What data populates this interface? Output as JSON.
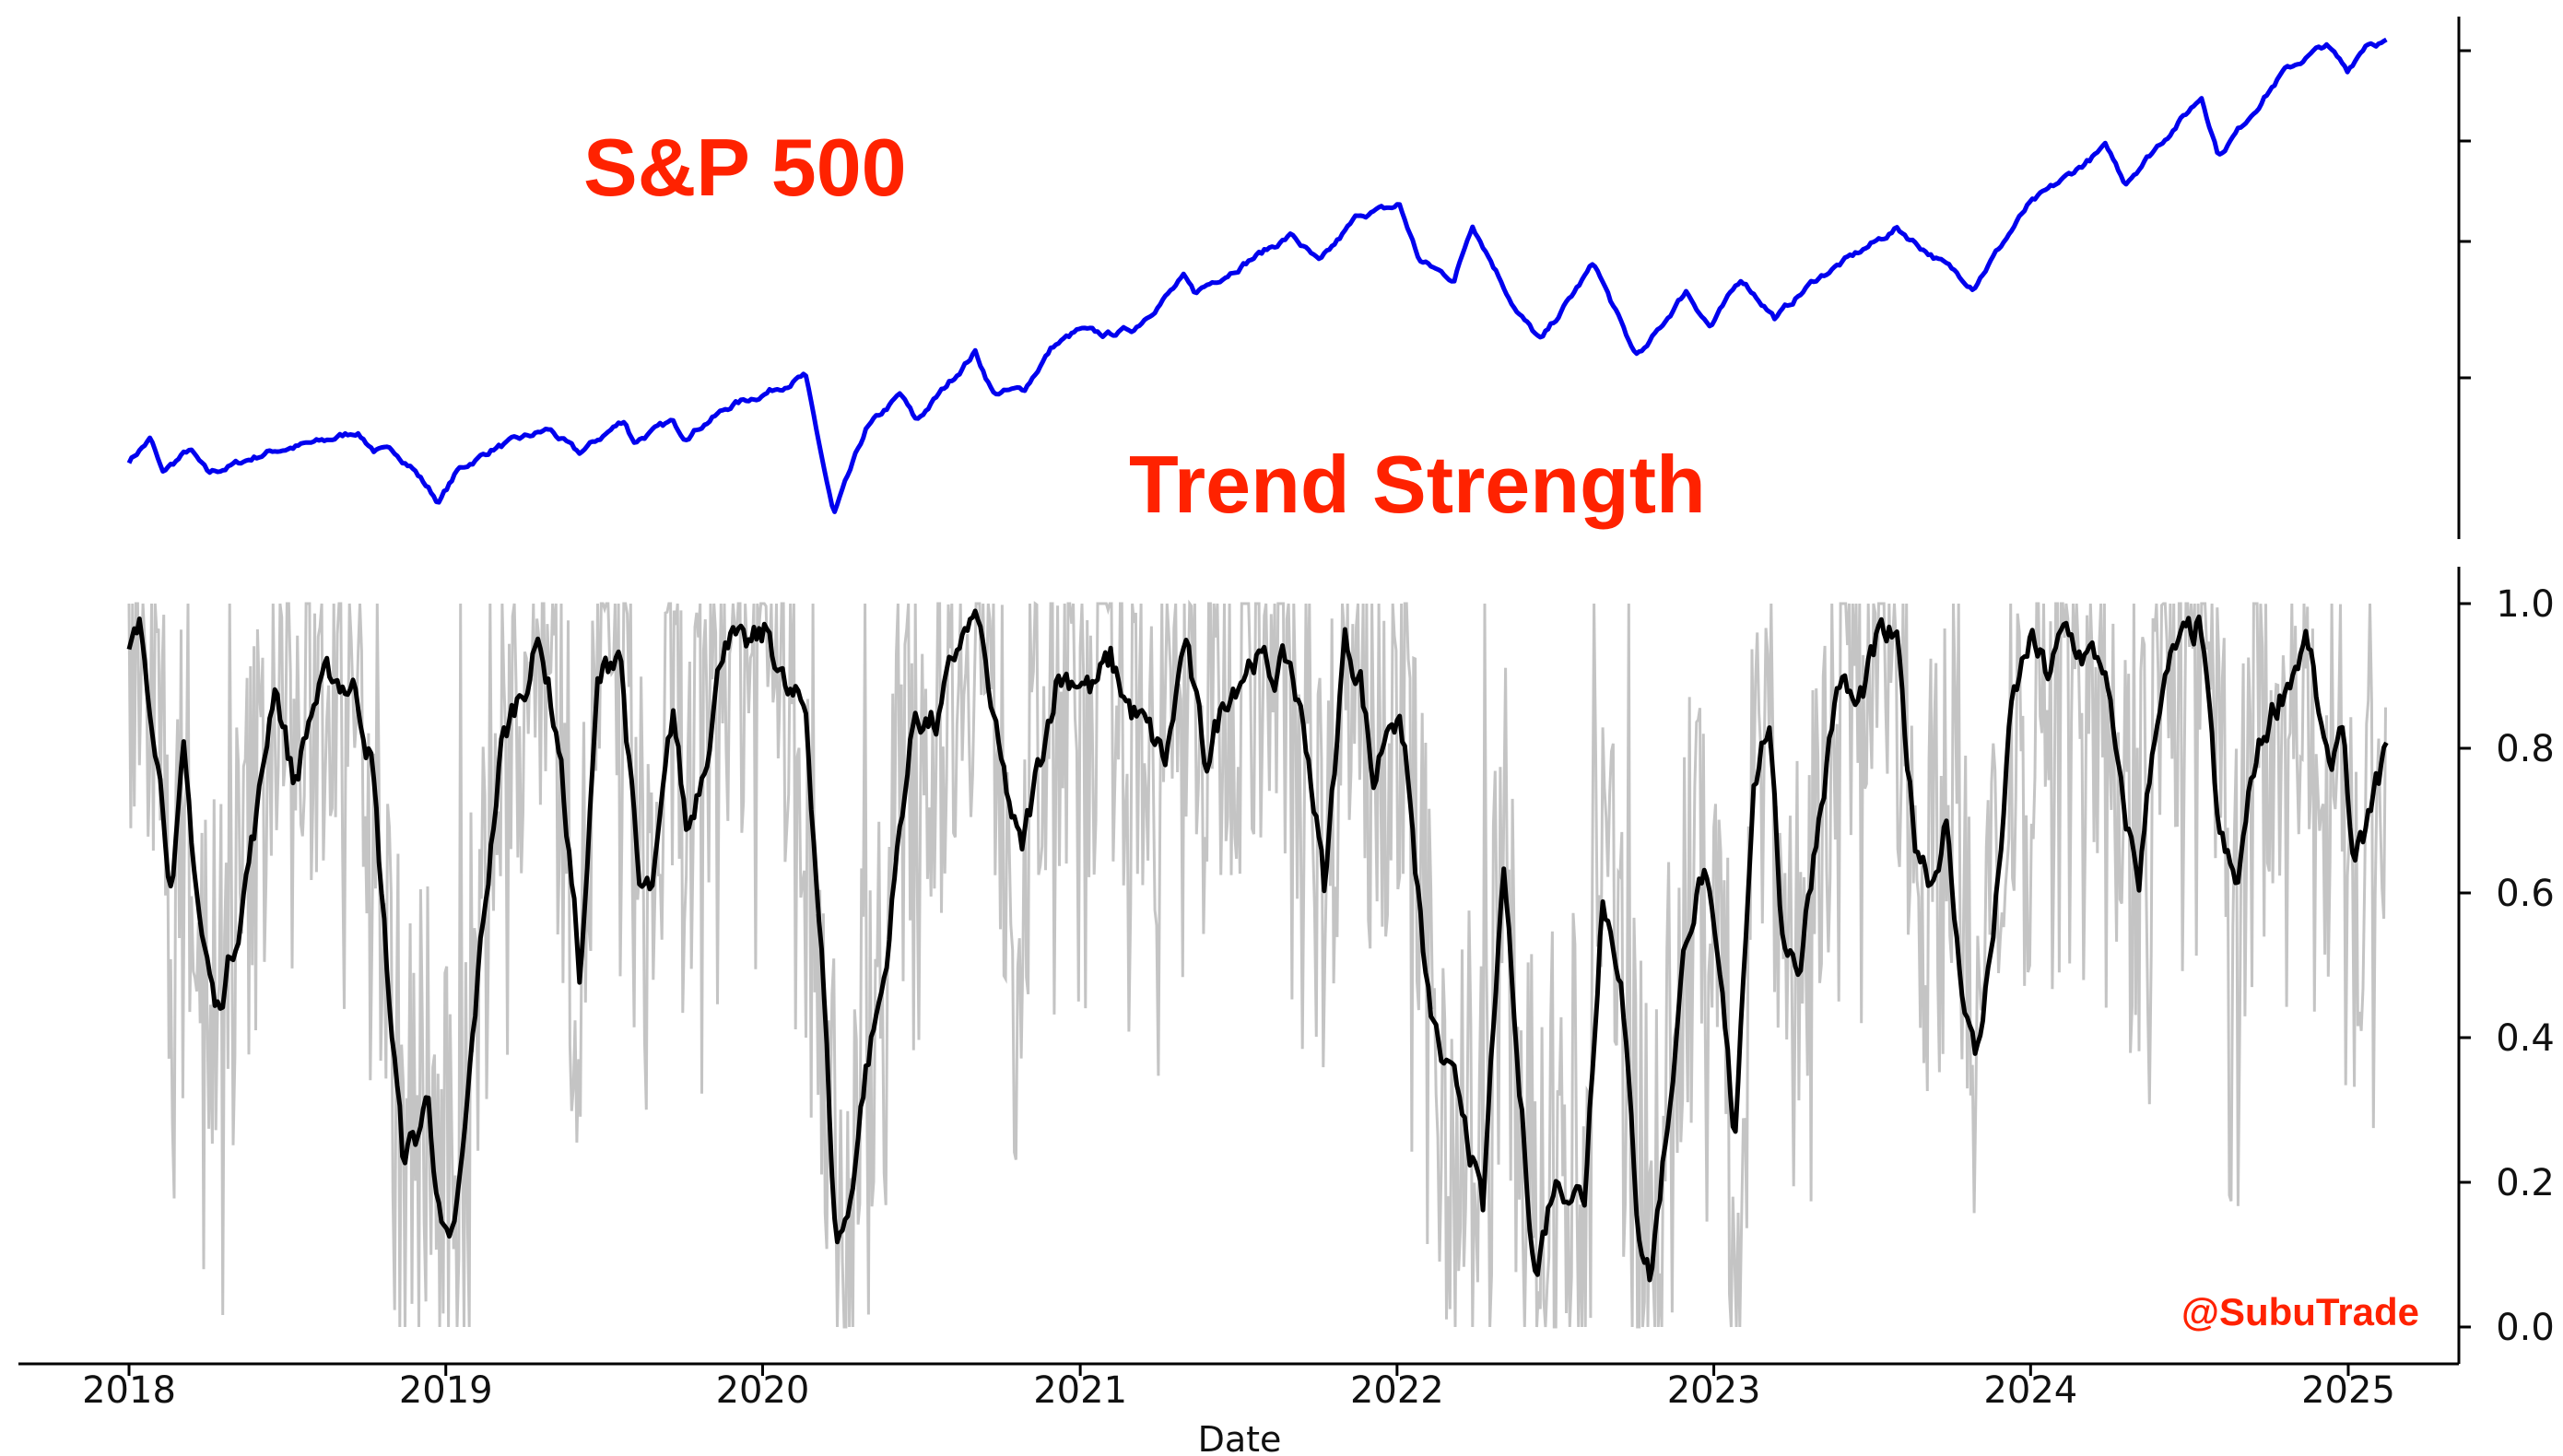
{
  "chart_data": [
    {
      "type": "line",
      "panel": "top",
      "label": "S&P 500",
      "label_color": "#ff2200",
      "series": [
        {
          "color": "#0000ee",
          "points": [
            [
              "2018-01-01",
              2690
            ],
            [
              "2018-01-26",
              2870
            ],
            [
              "2018-02-08",
              2590
            ],
            [
              "2018-03-12",
              2780
            ],
            [
              "2018-04-02",
              2580
            ],
            [
              "2018-06-15",
              2770
            ],
            [
              "2018-08-15",
              2850
            ],
            [
              "2018-09-20",
              2930
            ],
            [
              "2018-10-10",
              2780
            ],
            [
              "2018-11-05",
              2750
            ],
            [
              "2018-11-22",
              2650
            ],
            [
              "2018-12-24",
              2350
            ],
            [
              "2019-01-15",
              2610
            ],
            [
              "2019-02-25",
              2790
            ],
            [
              "2019-04-30",
              2945
            ],
            [
              "2019-06-03",
              2745
            ],
            [
              "2019-07-26",
              3025
            ],
            [
              "2019-08-05",
              2845
            ],
            [
              "2019-09-18",
              3005
            ],
            [
              "2019-10-03",
              2890
            ],
            [
              "2019-11-28",
              3150
            ],
            [
              "2019-12-31",
              3230
            ],
            [
              "2020-02-19",
              3386
            ],
            [
              "2020-03-23",
              2237
            ],
            [
              "2020-04-29",
              2940
            ],
            [
              "2020-06-08",
              3230
            ],
            [
              "2020-06-26",
              3010
            ],
            [
              "2020-09-02",
              3580
            ],
            [
              "2020-09-23",
              3240
            ],
            [
              "2020-10-28",
              3270
            ],
            [
              "2020-11-30",
              3620
            ],
            [
              "2020-12-31",
              3756
            ],
            [
              "2021-01-29",
              3715
            ],
            [
              "2021-03-04",
              3770
            ],
            [
              "2021-04-30",
              4180
            ],
            [
              "2021-05-12",
              4060
            ],
            [
              "2021-07-30",
              4395
            ],
            [
              "2021-09-02",
              4535
            ],
            [
              "2021-10-04",
              4300
            ],
            [
              "2021-11-18",
              4700
            ],
            [
              "2021-12-31",
              4766
            ],
            [
              "2022-01-03",
              4796
            ],
            [
              "2022-01-27",
              4326
            ],
            [
              "2022-03-08",
              4170
            ],
            [
              "2022-03-29",
              4630
            ],
            [
              "2022-05-20",
              3900
            ],
            [
              "2022-06-16",
              3666
            ],
            [
              "2022-08-16",
              4305
            ],
            [
              "2022-09-30",
              3585
            ],
            [
              "2022-10-12",
              3577
            ],
            [
              "2022-11-30",
              4080
            ],
            [
              "2022-12-28",
              3783
            ],
            [
              "2023-02-02",
              4180
            ],
            [
              "2023-03-13",
              3855
            ],
            [
              "2023-04-28",
              4170
            ],
            [
              "2023-06-30",
              4450
            ],
            [
              "2023-07-31",
              4588
            ],
            [
              "2023-10-27",
              4117
            ],
            [
              "2023-12-29",
              4770
            ],
            [
              "2024-03-28",
              5254
            ],
            [
              "2024-04-19",
              4967
            ],
            [
              "2024-07-16",
              5667
            ],
            [
              "2024-08-05",
              5186
            ],
            [
              "2024-10-18",
              5865
            ],
            [
              "2024-12-06",
              6090
            ],
            [
              "2024-12-31",
              5882
            ],
            [
              "2025-01-23",
              6118
            ],
            [
              "2025-02-14",
              6114
            ]
          ]
        }
      ]
    },
    {
      "type": "line",
      "panel": "bottom",
      "label": "Trend Strength",
      "label_color": "#ff2200",
      "xlabel": "Date",
      "x_ticks": [
        "2018",
        "2019",
        "2020",
        "2021",
        "2022",
        "2023",
        "2024",
        "2025"
      ],
      "x_range": [
        "2017-10-23",
        "2025-05-01"
      ],
      "ylim": [
        -0.05,
        1.05
      ],
      "y_ticks": [
        "0.0",
        "0.2",
        "0.4",
        "0.6",
        "0.8",
        "1.0"
      ],
      "grid": false,
      "series": [
        {
          "color": "#000000",
          "points": [
            [
              "2018-01-01",
              0.93
            ],
            [
              "2018-01-14",
              0.96
            ],
            [
              "2018-02-01",
              0.82
            ],
            [
              "2018-02-20",
              0.6
            ],
            [
              "2018-03-05",
              0.78
            ],
            [
              "2018-03-25",
              0.55
            ],
            [
              "2018-04-12",
              0.43
            ],
            [
              "2018-05-05",
              0.55
            ],
            [
              "2018-05-30",
              0.72
            ],
            [
              "2018-06-18",
              0.9
            ],
            [
              "2018-07-10",
              0.75
            ],
            [
              "2018-08-01",
              0.86
            ],
            [
              "2018-08-22",
              0.9
            ],
            [
              "2018-09-20",
              0.88
            ],
            [
              "2018-10-08",
              0.78
            ],
            [
              "2018-10-28",
              0.45
            ],
            [
              "2018-11-12",
              0.24
            ],
            [
              "2018-11-28",
              0.26
            ],
            [
              "2018-12-12",
              0.32
            ],
            [
              "2018-12-26",
              0.14
            ],
            [
              "2019-01-06",
              0.09
            ],
            [
              "2019-01-20",
              0.22
            ],
            [
              "2019-02-12",
              0.55
            ],
            [
              "2019-03-06",
              0.8
            ],
            [
              "2019-03-22",
              0.86
            ],
            [
              "2019-04-20",
              0.95
            ],
            [
              "2019-05-12",
              0.8
            ],
            [
              "2019-06-05",
              0.48
            ],
            [
              "2019-06-25",
              0.88
            ],
            [
              "2019-07-20",
              0.95
            ],
            [
              "2019-08-12",
              0.6
            ],
            [
              "2019-08-28",
              0.6
            ],
            [
              "2019-09-20",
              0.85
            ],
            [
              "2019-10-06",
              0.68
            ],
            [
              "2019-10-28",
              0.8
            ],
            [
              "2019-11-20",
              0.97
            ],
            [
              "2019-12-10",
              0.93
            ],
            [
              "2020-01-08",
              0.96
            ],
            [
              "2020-01-30",
              0.87
            ],
            [
              "2020-02-20",
              0.85
            ],
            [
              "2020-03-10",
              0.5
            ],
            [
              "2020-03-25",
              0.12
            ],
            [
              "2020-04-08",
              0.15
            ],
            [
              "2020-04-28",
              0.35
            ],
            [
              "2020-05-20",
              0.48
            ],
            [
              "2020-06-10",
              0.72
            ],
            [
              "2020-06-25",
              0.85
            ],
            [
              "2020-07-20",
              0.83
            ],
            [
              "2020-08-15",
              0.95
            ],
            [
              "2020-09-05",
              0.98
            ],
            [
              "2020-09-30",
              0.78
            ],
            [
              "2020-10-25",
              0.65
            ],
            [
              "2020-11-10",
              0.75
            ],
            [
              "2020-12-05",
              0.9
            ],
            [
              "2020-12-31",
              0.9
            ],
            [
              "2021-01-15",
              0.88
            ],
            [
              "2021-02-05",
              0.92
            ],
            [
              "2021-02-25",
              0.86
            ],
            [
              "2021-03-15",
              0.83
            ],
            [
              "2021-04-10",
              0.78
            ],
            [
              "2021-05-01",
              0.95
            ],
            [
              "2021-05-25",
              0.78
            ],
            [
              "2021-06-20",
              0.88
            ],
            [
              "2021-07-20",
              0.93
            ],
            [
              "2021-08-10",
              0.9
            ],
            [
              "2021-08-30",
              0.92
            ],
            [
              "2021-09-20",
              0.8
            ],
            [
              "2021-10-10",
              0.6
            ],
            [
              "2021-11-01",
              0.95
            ],
            [
              "2021-11-20",
              0.9
            ],
            [
              "2021-12-05",
              0.75
            ],
            [
              "2021-12-25",
              0.86
            ],
            [
              "2022-01-10",
              0.8
            ],
            [
              "2022-02-05",
              0.45
            ],
            [
              "2022-02-25",
              0.35
            ],
            [
              "2022-03-20",
              0.3
            ],
            [
              "2022-04-10",
              0.15
            ],
            [
              "2022-04-25",
              0.48
            ],
            [
              "2022-05-05",
              0.62
            ],
            [
              "2022-05-20",
              0.35
            ],
            [
              "2022-06-10",
              0.07
            ],
            [
              "2022-06-30",
              0.2
            ],
            [
              "2022-07-15",
              0.2
            ],
            [
              "2022-08-05",
              0.18
            ],
            [
              "2022-08-25",
              0.6
            ],
            [
              "2022-09-15",
              0.5
            ],
            [
              "2022-10-05",
              0.15
            ],
            [
              "2022-10-20",
              0.07
            ],
            [
              "2022-11-10",
              0.3
            ],
            [
              "2022-12-01",
              0.55
            ],
            [
              "2022-12-20",
              0.63
            ],
            [
              "2023-01-10",
              0.45
            ],
            [
              "2023-01-25",
              0.26
            ],
            [
              "2023-02-15",
              0.75
            ],
            [
              "2023-03-05",
              0.84
            ],
            [
              "2023-03-20",
              0.55
            ],
            [
              "2023-04-10",
              0.5
            ],
            [
              "2023-05-01",
              0.7
            ],
            [
              "2023-05-25",
              0.9
            ],
            [
              "2023-06-15",
              0.85
            ],
            [
              "2023-07-10",
              0.95
            ],
            [
              "2023-07-30",
              0.95
            ],
            [
              "2023-08-20",
              0.68
            ],
            [
              "2023-09-10",
              0.62
            ],
            [
              "2023-09-25",
              0.7
            ],
            [
              "2023-10-10",
              0.5
            ],
            [
              "2023-10-30",
              0.37
            ],
            [
              "2023-11-20",
              0.55
            ],
            [
              "2023-12-10",
              0.85
            ],
            [
              "2023-12-31",
              0.95
            ],
            [
              "2024-01-20",
              0.9
            ],
            [
              "2024-02-10",
              0.96
            ],
            [
              "2024-03-01",
              0.93
            ],
            [
              "2024-03-25",
              0.92
            ],
            [
              "2024-04-15",
              0.72
            ],
            [
              "2024-05-05",
              0.62
            ],
            [
              "2024-05-25",
              0.85
            ],
            [
              "2024-06-15",
              0.93
            ],
            [
              "2024-07-15",
              0.97
            ],
            [
              "2024-08-05",
              0.68
            ],
            [
              "2024-08-25",
              0.6
            ],
            [
              "2024-09-15",
              0.78
            ],
            [
              "2024-10-05",
              0.85
            ],
            [
              "2024-10-25",
              0.9
            ],
            [
              "2024-11-15",
              0.95
            ],
            [
              "2024-12-10",
              0.75
            ],
            [
              "2024-12-25",
              0.85
            ],
            [
              "2025-01-08",
              0.62
            ],
            [
              "2025-01-25",
              0.7
            ],
            [
              "2025-02-14",
              0.8
            ]
          ]
        }
      ]
    }
  ],
  "watermark": {
    "text": "@SubuTrade",
    "color": "#ff2200"
  }
}
